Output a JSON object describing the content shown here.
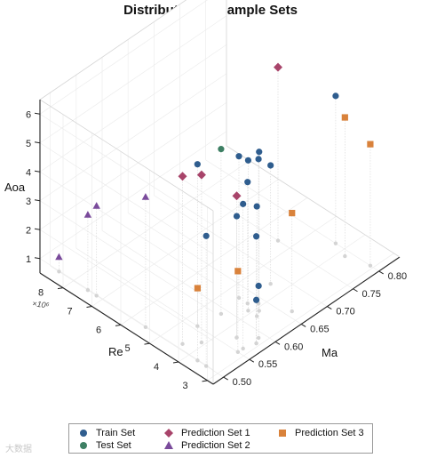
{
  "chart_data": {
    "type": "scatter3d",
    "title": "Distribution of Sample Sets",
    "xlabel": "Ma",
    "ylabel": "Re",
    "zlabel": "Aoa",
    "y_multiplier": "×10⁶",
    "x_ticks": [
      "0.50",
      "0.55",
      "0.60",
      "0.65",
      "0.70",
      "0.75",
      "0.80"
    ],
    "y_ticks": [
      "3",
      "4",
      "5",
      "6",
      "7",
      "8"
    ],
    "z_ticks": [
      "1",
      "2",
      "3",
      "4",
      "5",
      "6"
    ],
    "x_range": [
      0.48,
      0.84
    ],
    "y_range": [
      2.8,
      8.8
    ],
    "z_range": [
      0.5,
      6.5
    ],
    "legend_position": "bottom",
    "series": [
      {
        "name": "Train Set",
        "marker": "circle",
        "color": "#2f5d8e",
        "points": [
          [
            0.63,
            3.9,
            6.0
          ],
          [
            0.8,
            4.3,
            5.6
          ],
          [
            0.58,
            3.1,
            4.2
          ],
          [
            0.56,
            3.2,
            5.5
          ],
          [
            0.5,
            3.4,
            5.0
          ],
          [
            0.55,
            4.6,
            6.1
          ],
          [
            0.63,
            4.6,
            5.4
          ],
          [
            0.64,
            4.1,
            5.5
          ],
          [
            0.62,
            3.8,
            4.3
          ],
          [
            0.68,
            4.4,
            4.6
          ],
          [
            0.63,
            4.3,
            4.7
          ],
          [
            0.62,
            4.1,
            5.7
          ],
          [
            0.57,
            3.6,
            4.7
          ],
          [
            0.58,
            3.1,
            2.0
          ],
          [
            0.59,
            3.2,
            2.3
          ]
        ]
      },
      {
        "name": "Test Set",
        "marker": "circle",
        "color": "#3d7f63",
        "points": [
          [
            0.59,
            4.5,
            6.2
          ]
        ]
      },
      {
        "name": "Prediction Set 1",
        "marker": "diamond",
        "color": "#a8446a",
        "points": [
          [
            0.51,
            4.4,
            6.3
          ],
          [
            0.53,
            4.1,
            6.3
          ],
          [
            0.57,
            3.6,
            5.4
          ],
          [
            0.75,
            5.4,
            6.5
          ]
        ]
      },
      {
        "name": "Prediction Set 2",
        "marker": "triangle",
        "color": "#7a4b9b",
        "points": [
          [
            0.5,
            8.5,
            1.0
          ],
          [
            0.5,
            7.5,
            3.1
          ],
          [
            0.5,
            7.2,
            3.6
          ],
          [
            0.5,
            5.5,
            5.0
          ]
        ]
      },
      {
        "name": "Prediction Set 3",
        "marker": "square",
        "color": "#d9823b",
        "points": [
          [
            0.5,
            3.7,
            3.0
          ],
          [
            0.55,
            3.2,
            3.3
          ],
          [
            0.66,
            3.3,
            3.9
          ],
          [
            0.8,
            3.1,
            4.7
          ],
          [
            0.79,
            3.8,
            5.3
          ]
        ]
      }
    ]
  },
  "legend": {
    "items": [
      {
        "label": "Train Set"
      },
      {
        "label": "Test Set"
      },
      {
        "label": "Prediction Set 1"
      },
      {
        "label": "Prediction Set 2"
      },
      {
        "label": "Prediction Set 3"
      }
    ]
  },
  "watermark": "大数据"
}
